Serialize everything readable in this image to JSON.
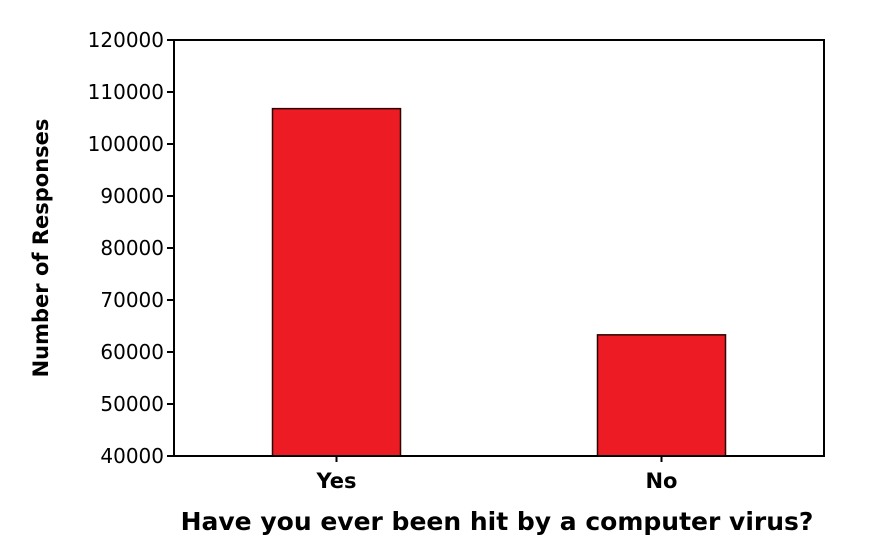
{
  "chart_data": {
    "type": "bar",
    "title": "",
    "xlabel": "Have you ever been hit by a computer virus?",
    "ylabel": "Number of Responses",
    "categories": [
      "Yes",
      "No"
    ],
    "values": [
      106800,
      63300
    ],
    "ylim": [
      40000,
      120000
    ],
    "yticks": [
      40000,
      50000,
      60000,
      70000,
      80000,
      90000,
      100000,
      110000,
      120000
    ],
    "grid": false,
    "legend": "none",
    "bar_color": "#ed1c24",
    "bar_stroke": "#2b0000"
  }
}
